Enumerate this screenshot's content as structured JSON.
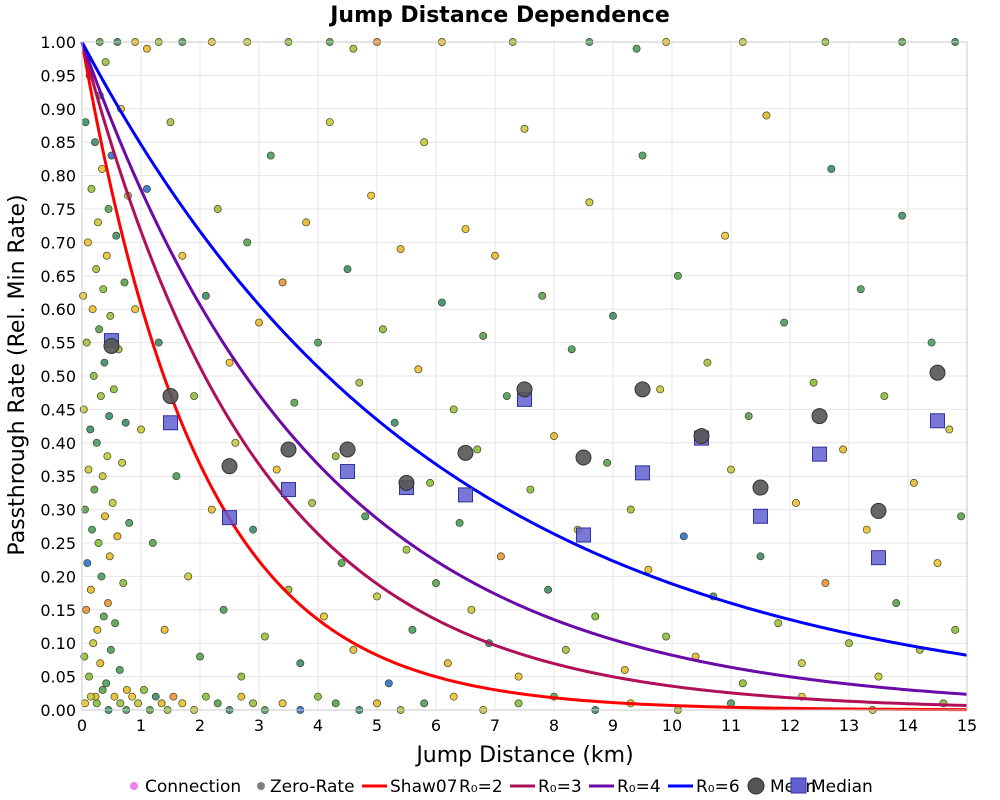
{
  "chart_data": {
    "type": "scatter",
    "title": "Jump Distance Dependence",
    "xlabel": "Jump Distance (km)",
    "ylabel": "Passthrough Rate (Rel. Min Rate)",
    "xlim": [
      0,
      15
    ],
    "ylim": [
      0,
      1
    ],
    "x_ticks": [
      "0",
      "1",
      "2",
      "3",
      "4",
      "5",
      "6",
      "7",
      "8",
      "9",
      "10",
      "11",
      "12",
      "13",
      "14",
      "15"
    ],
    "y_ticks": [
      "0.00",
      "0.05",
      "0.10",
      "0.15",
      "0.20",
      "0.25",
      "0.30",
      "0.35",
      "0.40",
      "0.45",
      "0.50",
      "0.55",
      "0.60",
      "0.65",
      "0.70",
      "0.75",
      "0.80",
      "0.85",
      "0.90",
      "0.95",
      "1.00"
    ],
    "grid": true,
    "legend_position": "bottom",
    "legend": {
      "connection": "Connection",
      "zero_rate": "Zero-Rate",
      "shaw_prefix": "Shaw07",
      "r2": "R₀=2",
      "r3": "R₀=3",
      "r4": "R₀=4",
      "r6": "R₀=6",
      "mean": "Mean",
      "median": "Median"
    },
    "colors": {
      "connection": "#ee82ee",
      "zero_rate": "#808080",
      "r2": "#ff0000",
      "r3": "#b0105a",
      "r4": "#6a0aa8",
      "r6": "#0000ff",
      "mean": "#555555",
      "median": "#6060d0"
    },
    "curves": [
      {
        "name": "Shaw07 R₀=2",
        "r0": 2,
        "color": "#ff0000"
      },
      {
        "name": "R₀=3",
        "r0": 3,
        "color": "#b0105a"
      },
      {
        "name": "R₀=4",
        "r0": 4,
        "color": "#6a0aa8"
      },
      {
        "name": "R₀=6",
        "r0": 6,
        "color": "#0000ff"
      }
    ],
    "mean": {
      "x": [
        0.5,
        1.5,
        2.5,
        3.5,
        4.5,
        5.5,
        6.5,
        7.5,
        8.5,
        9.5,
        10.5,
        11.5,
        12.5,
        13.5,
        14.5
      ],
      "y": [
        0.545,
        0.47,
        0.365,
        0.39,
        0.39,
        0.34,
        0.385,
        0.48,
        0.378,
        0.48,
        0.41,
        0.333,
        0.44,
        0.298,
        0.505
      ]
    },
    "median": {
      "x": [
        0.5,
        1.5,
        2.5,
        3.5,
        4.5,
        5.5,
        6.5,
        7.5,
        8.5,
        9.5,
        10.5,
        11.5,
        12.5,
        13.5,
        14.5
      ],
      "y": [
        0.553,
        0.43,
        0.288,
        0.33,
        0.357,
        0.333,
        0.322,
        0.465,
        0.262,
        0.355,
        0.407,
        0.29,
        0.383,
        0.228,
        0.433
      ]
    },
    "points": [
      [
        0.02,
        0.62
      ],
      [
        0.03,
        0.45
      ],
      [
        0.04,
        0.08
      ],
      [
        0.05,
        0.3
      ],
      [
        0.06,
        0.88
      ],
      [
        0.07,
        0.15
      ],
      [
        0.08,
        0.55
      ],
      [
        0.09,
        0.22
      ],
      [
        0.1,
        0.7
      ],
      [
        0.11,
        0.36
      ],
      [
        0.12,
        0.05
      ],
      [
        0.13,
        0.95
      ],
      [
        0.14,
        0.42
      ],
      [
        0.15,
        0.18
      ],
      [
        0.16,
        0.78
      ],
      [
        0.17,
        0.27
      ],
      [
        0.18,
        0.6
      ],
      [
        0.19,
        0.1
      ],
      [
        0.2,
        0.5
      ],
      [
        0.21,
        0.33
      ],
      [
        0.22,
        0.85
      ],
      [
        0.23,
        0.02
      ],
      [
        0.24,
        0.66
      ],
      [
        0.25,
        0.4
      ],
      [
        0.26,
        0.12
      ],
      [
        0.27,
        0.73
      ],
      [
        0.28,
        0.25
      ],
      [
        0.29,
        0.57
      ],
      [
        0.3,
        0.92
      ],
      [
        0.31,
        0.07
      ],
      [
        0.32,
        0.47
      ],
      [
        0.33,
        0.2
      ],
      [
        0.34,
        0.81
      ],
      [
        0.35,
        0.35
      ],
      [
        0.36,
        0.63
      ],
      [
        0.37,
        0.14
      ],
      [
        0.38,
        0.52
      ],
      [
        0.39,
        0.29
      ],
      [
        0.4,
        0.97
      ],
      [
        0.41,
        0.04
      ],
      [
        0.42,
        0.68
      ],
      [
        0.43,
        0.38
      ],
      [
        0.44,
        0.16
      ],
      [
        0.45,
        0.75
      ],
      [
        0.46,
        0.44
      ],
      [
        0.47,
        0.23
      ],
      [
        0.48,
        0.59
      ],
      [
        0.49,
        0.09
      ],
      [
        0.5,
        0.83
      ],
      [
        0.52,
        0.31
      ],
      [
        0.54,
        0.48
      ],
      [
        0.56,
        0.13
      ],
      [
        0.58,
        0.71
      ],
      [
        0.6,
        0.26
      ],
      [
        0.62,
        0.54
      ],
      [
        0.64,
        0.06
      ],
      [
        0.66,
        0.9
      ],
      [
        0.68,
        0.37
      ],
      [
        0.7,
        0.19
      ],
      [
        0.72,
        0.64
      ],
      [
        0.74,
        0.43
      ],
      [
        0.76,
        0.03
      ],
      [
        0.78,
        0.77
      ],
      [
        0.8,
        0.28
      ],
      [
        0.05,
        0.01
      ],
      [
        0.15,
        0.02
      ],
      [
        0.25,
        0.01
      ],
      [
        0.35,
        0.03
      ],
      [
        0.45,
        0.0
      ],
      [
        0.55,
        0.02
      ],
      [
        0.65,
        0.01
      ],
      [
        0.75,
        0.0
      ],
      [
        0.85,
        0.02
      ],
      [
        0.95,
        0.01
      ],
      [
        1.05,
        0.03
      ],
      [
        1.15,
        0.0
      ],
      [
        1.25,
        0.02
      ],
      [
        1.35,
        0.01
      ],
      [
        1.45,
        0.0
      ],
      [
        1.55,
        0.02
      ],
      [
        1.7,
        0.01
      ],
      [
        1.9,
        0.0
      ],
      [
        2.1,
        0.02
      ],
      [
        2.3,
        0.01
      ],
      [
        2.5,
        0.0
      ],
      [
        2.7,
        0.02
      ],
      [
        2.9,
        0.01
      ],
      [
        3.1,
        0.0
      ],
      [
        3.4,
        0.01
      ],
      [
        3.7,
        0.0
      ],
      [
        4.0,
        0.02
      ],
      [
        4.3,
        0.01
      ],
      [
        4.7,
        0.0
      ],
      [
        5.0,
        0.01
      ],
      [
        5.4,
        0.0
      ],
      [
        5.8,
        0.01
      ],
      [
        6.3,
        0.02
      ],
      [
        6.8,
        0.0
      ],
      [
        7.4,
        0.01
      ],
      [
        8.0,
        0.02
      ],
      [
        8.7,
        0.0
      ],
      [
        9.3,
        0.01
      ],
      [
        10.1,
        0.0
      ],
      [
        11.0,
        0.01
      ],
      [
        12.2,
        0.02
      ],
      [
        13.4,
        0.0
      ],
      [
        14.6,
        0.01
      ],
      [
        0.3,
        1.0
      ],
      [
        0.6,
        1.0
      ],
      [
        0.9,
        1.0
      ],
      [
        1.3,
        1.0
      ],
      [
        1.7,
        1.0
      ],
      [
        2.2,
        1.0
      ],
      [
        2.8,
        1.0
      ],
      [
        3.5,
        1.0
      ],
      [
        4.2,
        1.0
      ],
      [
        5.0,
        1.0
      ],
      [
        6.1,
        1.0
      ],
      [
        7.3,
        1.0
      ],
      [
        8.6,
        1.0
      ],
      [
        9.9,
        1.0
      ],
      [
        11.2,
        1.0
      ],
      [
        12.6,
        1.0
      ],
      [
        13.9,
        1.0
      ],
      [
        14.8,
        1.0
      ],
      [
        1.1,
        0.99
      ],
      [
        4.6,
        0.99
      ],
      [
        9.4,
        0.99
      ],
      [
        0.9,
        0.6
      ],
      [
        1.0,
        0.42
      ],
      [
        1.1,
        0.78
      ],
      [
        1.2,
        0.25
      ],
      [
        1.3,
        0.55
      ],
      [
        1.4,
        0.12
      ],
      [
        1.5,
        0.88
      ],
      [
        1.6,
        0.35
      ],
      [
        1.7,
        0.68
      ],
      [
        1.8,
        0.2
      ],
      [
        1.9,
        0.47
      ],
      [
        2.0,
        0.08
      ],
      [
        2.1,
        0.62
      ],
      [
        2.2,
        0.3
      ],
      [
        2.3,
        0.75
      ],
      [
        2.4,
        0.15
      ],
      [
        2.5,
        0.52
      ],
      [
        2.6,
        0.4
      ],
      [
        2.7,
        0.05
      ],
      [
        2.8,
        0.7
      ],
      [
        2.9,
        0.27
      ],
      [
        3.0,
        0.58
      ],
      [
        3.1,
        0.11
      ],
      [
        3.2,
        0.83
      ],
      [
        3.3,
        0.36
      ],
      [
        3.4,
        0.64
      ],
      [
        3.5,
        0.18
      ],
      [
        3.6,
        0.46
      ],
      [
        3.7,
        0.07
      ],
      [
        3.8,
        0.73
      ],
      [
        3.9,
        0.31
      ],
      [
        4.0,
        0.55
      ],
      [
        4.1,
        0.14
      ],
      [
        4.2,
        0.88
      ],
      [
        4.3,
        0.38
      ],
      [
        4.4,
        0.22
      ],
      [
        4.5,
        0.66
      ],
      [
        4.6,
        0.09
      ],
      [
        4.7,
        0.49
      ],
      [
        4.8,
        0.29
      ],
      [
        4.9,
        0.77
      ],
      [
        5.0,
        0.17
      ],
      [
        5.1,
        0.57
      ],
      [
        5.2,
        0.04
      ],
      [
        5.3,
        0.43
      ],
      [
        5.4,
        0.69
      ],
      [
        5.5,
        0.24
      ],
      [
        5.6,
        0.12
      ],
      [
        5.7,
        0.51
      ],
      [
        5.8,
        0.85
      ],
      [
        5.9,
        0.34
      ],
      [
        6.0,
        0.19
      ],
      [
        6.1,
        0.61
      ],
      [
        6.2,
        0.07
      ],
      [
        6.3,
        0.45
      ],
      [
        6.4,
        0.28
      ],
      [
        6.5,
        0.72
      ],
      [
        6.6,
        0.15
      ],
      [
        6.7,
        0.39
      ],
      [
        6.8,
        0.56
      ],
      [
        6.9,
        0.1
      ],
      [
        7.0,
        0.68
      ],
      [
        7.1,
        0.23
      ],
      [
        7.2,
        0.47
      ],
      [
        7.4,
        0.05
      ],
      [
        7.5,
        0.87
      ],
      [
        7.6,
        0.33
      ],
      [
        7.8,
        0.62
      ],
      [
        7.9,
        0.18
      ],
      [
        8.0,
        0.41
      ],
      [
        8.2,
        0.09
      ],
      [
        8.3,
        0.54
      ],
      [
        8.4,
        0.27
      ],
      [
        8.6,
        0.76
      ],
      [
        8.7,
        0.14
      ],
      [
        8.9,
        0.37
      ],
      [
        9.0,
        0.59
      ],
      [
        9.2,
        0.06
      ],
      [
        9.3,
        0.3
      ],
      [
        9.5,
        0.83
      ],
      [
        9.6,
        0.21
      ],
      [
        9.8,
        0.48
      ],
      [
        9.9,
        0.11
      ],
      [
        10.1,
        0.65
      ],
      [
        10.2,
        0.26
      ],
      [
        10.4,
        0.08
      ],
      [
        10.6,
        0.52
      ],
      [
        10.7,
        0.17
      ],
      [
        10.9,
        0.71
      ],
      [
        11.0,
        0.36
      ],
      [
        11.2,
        0.04
      ],
      [
        11.3,
        0.44
      ],
      [
        11.5,
        0.23
      ],
      [
        11.6,
        0.89
      ],
      [
        11.8,
        0.13
      ],
      [
        11.9,
        0.58
      ],
      [
        12.1,
        0.31
      ],
      [
        12.2,
        0.07
      ],
      [
        12.4,
        0.49
      ],
      [
        12.6,
        0.19
      ],
      [
        12.7,
        0.81
      ],
      [
        12.9,
        0.39
      ],
      [
        13.0,
        0.1
      ],
      [
        13.2,
        0.63
      ],
      [
        13.3,
        0.27
      ],
      [
        13.5,
        0.05
      ],
      [
        13.6,
        0.47
      ],
      [
        13.8,
        0.16
      ],
      [
        13.9,
        0.74
      ],
      [
        14.1,
        0.34
      ],
      [
        14.2,
        0.09
      ],
      [
        14.4,
        0.55
      ],
      [
        14.5,
        0.22
      ],
      [
        14.7,
        0.42
      ],
      [
        14.8,
        0.12
      ],
      [
        14.9,
        0.29
      ]
    ]
  }
}
